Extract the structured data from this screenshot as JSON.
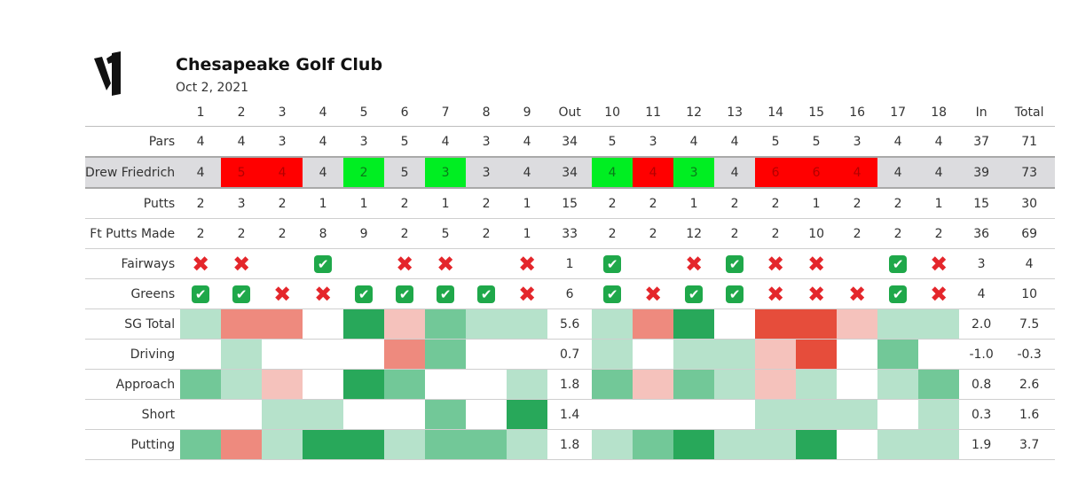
{
  "header": {
    "club_name": "Chesapeake Golf Club",
    "date": "Oct 2, 2021"
  },
  "logo": {
    "icon": "v1-logo"
  },
  "colors": {
    "score_over": "#ff0000",
    "score_under": "#00ee22",
    "player_row": "#dcdcdf",
    "sg_pos_1": "#b6e2cb",
    "sg_pos_2": "#72c898",
    "sg_pos_3": "#28a85a",
    "sg_neg_1": "#f5c2bc",
    "sg_neg_2": "#ee8a7e",
    "sg_neg_3": "#e64d3b",
    "miss_mark": "#e4262b",
    "hit_mark": "#1fa84a"
  },
  "scorecard": {
    "columns": [
      "",
      "1",
      "2",
      "3",
      "4",
      "5",
      "6",
      "7",
      "8",
      "9",
      "Out",
      "10",
      "11",
      "12",
      "13",
      "14",
      "15",
      "16",
      "17",
      "18",
      "In",
      "Total"
    ],
    "rows": [
      {
        "label": "Pars",
        "type": "text",
        "cells": [
          "4",
          "4",
          "3",
          "4",
          "3",
          "5",
          "4",
          "3",
          "4",
          "34",
          "5",
          "3",
          "4",
          "4",
          "5",
          "5",
          "3",
          "4",
          "4",
          "37",
          "71"
        ]
      },
      {
        "label": "Drew Friedrich",
        "type": "player",
        "cells": [
          "4",
          "5",
          "4",
          "4",
          "2",
          "5",
          "3",
          "3",
          "4",
          "34",
          "4",
          "4",
          "3",
          "4",
          "6",
          "6",
          "4",
          "4",
          "4",
          "39",
          "73"
        ],
        "shades": [
          "",
          "over",
          "over",
          "",
          "under",
          "",
          "under",
          "",
          "",
          "",
          "under",
          "over",
          "under",
          "",
          "over",
          "over",
          "over",
          "",
          "",
          "",
          ""
        ]
      },
      {
        "label": "Putts",
        "type": "text",
        "cells": [
          "2",
          "3",
          "2",
          "1",
          "1",
          "2",
          "1",
          "2",
          "1",
          "15",
          "2",
          "2",
          "1",
          "2",
          "2",
          "1",
          "2",
          "2",
          "1",
          "15",
          "30"
        ]
      },
      {
        "label": "Ft Putts Made",
        "type": "text",
        "cells": [
          "2",
          "2",
          "2",
          "8",
          "9",
          "2",
          "5",
          "2",
          "1",
          "33",
          "2",
          "2",
          "12",
          "2",
          "2",
          "10",
          "2",
          "2",
          "2",
          "36",
          "69"
        ]
      },
      {
        "label": "Fairways",
        "type": "marks",
        "cells": [
          "x",
          "x",
          "",
          "ok",
          "",
          "x",
          "x",
          "",
          "x",
          "1",
          "ok",
          "",
          "x",
          "ok",
          "x",
          "x",
          "",
          "ok",
          "x",
          "3",
          "4"
        ]
      },
      {
        "label": "Greens",
        "type": "marks",
        "cells": [
          "ok",
          "ok",
          "x",
          "x",
          "ok",
          "ok",
          "ok",
          "ok",
          "x",
          "6",
          "ok",
          "x",
          "ok",
          "ok",
          "x",
          "x",
          "x",
          "ok",
          "x",
          "4",
          "10"
        ]
      },
      {
        "label": "SG Total",
        "type": "heat",
        "cells": [
          "",
          "",
          "",
          "",
          "",
          "",
          "",
          "",
          "",
          "5.6",
          "",
          "",
          "",
          "",
          "",
          "",
          "",
          "",
          "",
          "2.0",
          "7.5"
        ],
        "levels": [
          1,
          -2,
          -2,
          0,
          3,
          -1,
          2,
          1,
          1,
          null,
          1,
          -2,
          3,
          0,
          -3,
          -3,
          -1,
          1,
          1,
          null,
          null
        ]
      },
      {
        "label": "Driving",
        "type": "heat",
        "cells": [
          "",
          "",
          "",
          "",
          "",
          "",
          "",
          "",
          "",
          "0.7",
          "",
          "",
          "",
          "",
          "",
          "",
          "",
          "",
          "",
          "-1.0",
          "-0.3"
        ],
        "levels": [
          0,
          1,
          0,
          0,
          0,
          -2,
          2,
          0,
          0,
          null,
          1,
          0,
          1,
          1,
          -1,
          -3,
          0,
          2,
          0,
          null,
          null
        ]
      },
      {
        "label": "Approach",
        "type": "heat",
        "cells": [
          "",
          "",
          "",
          "",
          "",
          "",
          "",
          "",
          "",
          "1.8",
          "",
          "",
          "",
          "",
          "",
          "",
          "",
          "",
          "",
          "0.8",
          "2.6"
        ],
        "levels": [
          2,
          1,
          -1,
          0,
          3,
          2,
          0,
          0,
          1,
          null,
          2,
          -1,
          2,
          1,
          -1,
          1,
          0,
          1,
          2,
          null,
          null
        ]
      },
      {
        "label": "Short",
        "type": "heat",
        "cells": [
          "",
          "",
          "",
          "",
          "",
          "",
          "",
          "",
          "",
          "1.4",
          "",
          "",
          "",
          "",
          "",
          "",
          "",
          "",
          "",
          "0.3",
          "1.6"
        ],
        "levels": [
          0,
          0,
          1,
          1,
          0,
          0,
          2,
          0,
          3,
          null,
          0,
          0,
          0,
          0,
          1,
          1,
          1,
          0,
          1,
          null,
          null
        ]
      },
      {
        "label": "Putting",
        "type": "heat",
        "cells": [
          "",
          "",
          "",
          "",
          "",
          "",
          "",
          "",
          "",
          "1.8",
          "",
          "",
          "",
          "",
          "",
          "",
          "",
          "",
          "",
          "1.9",
          "3.7"
        ],
        "levels": [
          2,
          -2,
          1,
          3,
          3,
          1,
          2,
          2,
          1,
          null,
          1,
          2,
          3,
          1,
          1,
          3,
          0,
          1,
          1,
          null,
          null
        ]
      }
    ]
  }
}
